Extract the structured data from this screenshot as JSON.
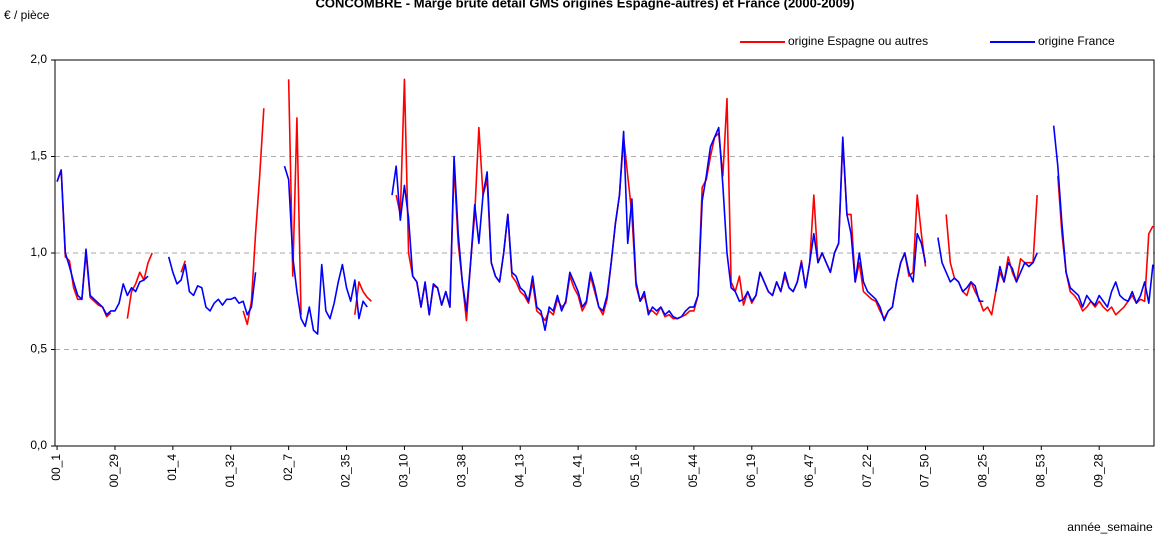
{
  "chart_data": {
    "type": "line",
    "title": "CONCOMBRE - Marge brute détail GMS origines Espagne-autres)  et France (2000-2009)",
    "y_label": "€ / pièce",
    "x_label": "année_semaine",
    "ylim": [
      0,
      2.0
    ],
    "yticks": [
      {
        "value": 0,
        "label": "0,0"
      },
      {
        "value": 0.5,
        "label": "0,5"
      },
      {
        "value": 1.0,
        "label": "1,0"
      },
      {
        "value": 1.5,
        "label": "1,5"
      },
      {
        "value": 2.0,
        "label": "2,0"
      }
    ],
    "grid": true,
    "legend": "top-right",
    "categories": [
      "00_1",
      null,
      null,
      null,
      null,
      null,
      null,
      null,
      null,
      null,
      null,
      null,
      null,
      null,
      "00_29",
      null,
      null,
      null,
      null,
      null,
      null,
      null,
      null,
      null,
      null,
      null,
      null,
      null,
      "01_4",
      null,
      null,
      null,
      null,
      null,
      null,
      null,
      null,
      null,
      null,
      null,
      null,
      null,
      "01_32",
      null,
      null,
      null,
      null,
      null,
      null,
      null,
      null,
      null,
      null,
      null,
      null,
      null,
      "02_7",
      null,
      null,
      null,
      null,
      null,
      null,
      null,
      null,
      null,
      null,
      null,
      null,
      null,
      "02_35",
      null,
      null,
      null,
      null,
      null,
      null,
      null,
      null,
      null,
      null,
      null,
      null,
      null,
      "03_10",
      null,
      null,
      null,
      null,
      null,
      null,
      null,
      null,
      null,
      null,
      null,
      null,
      null,
      "03_38",
      null,
      null,
      null,
      null,
      null,
      null,
      null,
      null,
      null,
      null,
      null,
      null,
      null,
      "04_13",
      null,
      null,
      null,
      null,
      null,
      null,
      null,
      null,
      null,
      null,
      null,
      null,
      null,
      "04_41",
      null,
      null,
      null,
      null,
      null,
      null,
      null,
      null,
      null,
      null,
      null,
      null,
      null,
      "05_16",
      null,
      null,
      null,
      null,
      null,
      null,
      null,
      null,
      null,
      null,
      null,
      null,
      null,
      "05_44",
      null,
      null,
      null,
      null,
      null,
      null,
      null,
      null,
      null,
      null,
      null,
      null,
      null,
      "06_19",
      null,
      null,
      null,
      null,
      null,
      null,
      null,
      null,
      null,
      null,
      null,
      null,
      null,
      "06_47",
      null,
      null,
      null,
      null,
      null,
      null,
      null,
      null,
      null,
      null,
      null,
      null,
      null,
      "07_22",
      null,
      null,
      null,
      null,
      null,
      null,
      null,
      null,
      null,
      null,
      null,
      null,
      null,
      "07_50",
      null,
      null,
      null,
      null,
      null,
      null,
      null,
      null,
      null,
      null,
      null,
      null,
      null,
      "08_25",
      null,
      null,
      null,
      null,
      null,
      null,
      null,
      null,
      null,
      null,
      null,
      null,
      null,
      "08_53",
      null,
      null,
      null,
      null,
      null,
      null,
      null,
      null,
      null,
      null,
      null,
      null,
      null,
      "09_28",
      null,
      null,
      null,
      null,
      null,
      null,
      null,
      null,
      null,
      null,
      null,
      null,
      null
    ],
    "series": [
      {
        "name": "origine Espagne ou autres",
        "color": "#ff0000",
        "values": [
          1.37,
          1.43,
          0.98,
          0.96,
          0.82,
          0.76,
          0.76,
          1.0,
          0.77,
          0.75,
          0.73,
          0.72,
          0.67,
          0.69,
          null,
          null,
          null,
          0.66,
          0.8,
          0.84,
          0.9,
          0.86,
          0.95,
          1.0,
          null,
          null,
          null,
          null,
          null,
          null,
          0.9,
          0.96,
          null,
          null,
          null,
          null,
          null,
          null,
          null,
          null,
          null,
          null,
          null,
          null,
          null,
          0.7,
          0.63,
          0.75,
          1.1,
          1.4,
          1.75,
          null,
          null,
          null,
          null,
          null,
          1.9,
          0.88,
          1.7,
          0.68,
          null,
          null,
          null,
          null,
          null,
          null,
          null,
          null,
          null,
          null,
          null,
          null,
          0.68,
          0.85,
          0.8,
          0.77,
          0.75,
          null,
          null,
          null,
          null,
          null,
          1.3,
          1.2,
          1.9,
          1.0,
          0.88,
          0.85,
          0.72,
          0.84,
          0.68,
          0.83,
          0.82,
          0.73,
          0.8,
          0.72,
          1.45,
          1.05,
          0.85,
          0.65,
          0.95,
          1.2,
          1.65,
          1.3,
          1.38,
          0.95,
          0.88,
          0.85,
          1.0,
          1.2,
          0.88,
          0.85,
          0.8,
          0.78,
          0.74,
          0.85,
          0.7,
          0.68,
          0.65,
          0.7,
          0.68,
          0.76,
          0.72,
          0.74,
          0.88,
          0.82,
          0.78,
          0.7,
          0.74,
          0.88,
          0.8,
          0.72,
          0.68,
          0.76,
          0.95,
          1.15,
          1.3,
          1.6,
          1.4,
          1.2,
          0.83,
          0.75,
          0.78,
          0.7,
          0.7,
          0.68,
          0.72,
          0.67,
          0.68,
          0.66,
          0.66,
          0.67,
          0.68,
          0.7,
          0.7,
          0.78,
          1.34,
          1.38,
          1.5,
          1.6,
          1.62,
          1.4,
          1.8,
          0.85,
          0.8,
          0.88,
          0.73,
          0.8,
          0.74,
          0.78,
          0.9,
          0.85,
          0.8,
          0.78,
          0.85,
          0.8,
          0.88,
          0.82,
          0.8,
          0.85,
          0.96,
          0.82,
          0.95,
          1.3,
          0.95,
          1.0,
          0.95,
          0.9,
          1.0,
          1.05,
          1.58,
          1.2,
          1.2,
          0.85,
          0.95,
          0.8,
          0.78,
          0.76,
          0.75,
          0.7,
          0.66,
          0.7,
          0.72,
          0.85,
          0.95,
          1.0,
          0.88,
          0.9,
          1.3,
          1.1,
          0.93,
          null,
          null,
          null,
          null,
          1.2,
          0.95,
          0.87,
          0.85,
          0.8,
          0.78,
          0.85,
          0.8,
          0.76,
          0.7,
          0.72,
          0.68,
          0.8,
          0.9,
          0.85,
          0.98,
          0.9,
          0.85,
          0.97,
          0.95,
          0.95,
          0.95,
          1.3,
          null,
          null,
          null,
          null,
          1.4,
          1.1,
          0.9,
          0.8,
          0.78,
          0.75,
          0.7,
          0.72,
          0.75,
          0.72,
          0.75,
          0.72,
          0.7,
          0.72,
          0.68,
          0.7,
          0.72,
          0.75,
          0.78,
          0.74,
          0.76,
          0.75,
          1.1,
          1.14
        ]
      },
      {
        "name": "origine France",
        "color": "#0000ff",
        "values": [
          1.37,
          1.43,
          1.0,
          0.93,
          0.85,
          0.78,
          0.76,
          1.02,
          0.78,
          0.76,
          0.74,
          0.72,
          0.68,
          0.7,
          0.7,
          0.74,
          0.84,
          0.78,
          0.82,
          0.8,
          0.85,
          0.86,
          0.88,
          null,
          null,
          null,
          null,
          0.98,
          0.9,
          0.84,
          0.86,
          0.94,
          0.8,
          0.78,
          0.83,
          0.82,
          0.72,
          0.7,
          0.74,
          0.76,
          0.73,
          0.76,
          0.76,
          0.77,
          0.74,
          0.75,
          0.68,
          0.72,
          0.9,
          null,
          null,
          null,
          null,
          null,
          null,
          1.45,
          1.38,
          0.98,
          0.8,
          0.66,
          0.62,
          0.72,
          0.6,
          0.58,
          0.94,
          0.7,
          0.66,
          0.74,
          0.85,
          0.94,
          0.82,
          0.75,
          0.86,
          0.66,
          0.75,
          0.72,
          null,
          null,
          null,
          null,
          null,
          1.3,
          1.45,
          1.17,
          1.35,
          1.18,
          0.88,
          0.85,
          0.72,
          0.85,
          0.68,
          0.84,
          0.82,
          0.73,
          0.8,
          0.72,
          1.5,
          1.1,
          0.85,
          0.7,
          0.95,
          1.25,
          1.05,
          1.3,
          1.42,
          0.95,
          0.88,
          0.85,
          1.0,
          1.2,
          0.9,
          0.88,
          0.82,
          0.8,
          0.75,
          0.88,
          0.72,
          0.7,
          0.6,
          0.72,
          0.7,
          0.78,
          0.7,
          0.75,
          0.9,
          0.85,
          0.8,
          0.72,
          0.75,
          0.9,
          0.82,
          0.72,
          0.7,
          0.78,
          0.95,
          1.15,
          1.3,
          1.63,
          1.05,
          1.28,
          0.85,
          0.75,
          0.8,
          0.68,
          0.72,
          0.7,
          0.72,
          0.68,
          0.7,
          0.67,
          0.66,
          0.67,
          0.7,
          0.72,
          0.72,
          0.78,
          1.27,
          1.4,
          1.55,
          1.6,
          1.65,
          1.35,
          1.0,
          0.82,
          0.8,
          0.75,
          0.76,
          0.8,
          0.75,
          0.78,
          0.9,
          0.85,
          0.8,
          0.78,
          0.85,
          0.8,
          0.9,
          0.82,
          0.8,
          0.85,
          0.95,
          0.82,
          0.95,
          1.1,
          0.95,
          1.0,
          0.95,
          0.9,
          1.0,
          1.05,
          1.6,
          1.2,
          1.1,
          0.85,
          1.0,
          0.85,
          0.8,
          0.78,
          0.76,
          0.72,
          0.65,
          0.7,
          0.72,
          0.85,
          0.95,
          1.0,
          0.9,
          0.85,
          1.1,
          1.05,
          0.95,
          null,
          null,
          1.08,
          0.95,
          0.9,
          0.85,
          0.87,
          0.85,
          0.8,
          0.82,
          0.85,
          0.83,
          0.75,
          0.75,
          null,
          null,
          0.8,
          0.93,
          0.85,
          0.95,
          0.92,
          0.85,
          0.9,
          0.95,
          0.93,
          0.95,
          1.0,
          null,
          null,
          null,
          1.66,
          1.45,
          1.15,
          0.9,
          0.82,
          0.8,
          0.78,
          0.72,
          0.78,
          0.75,
          0.73,
          0.78,
          0.75,
          0.72,
          0.8,
          0.85,
          0.78,
          0.76,
          0.75,
          0.8,
          0.74,
          0.78,
          0.85,
          0.74,
          0.94
        ]
      }
    ]
  }
}
